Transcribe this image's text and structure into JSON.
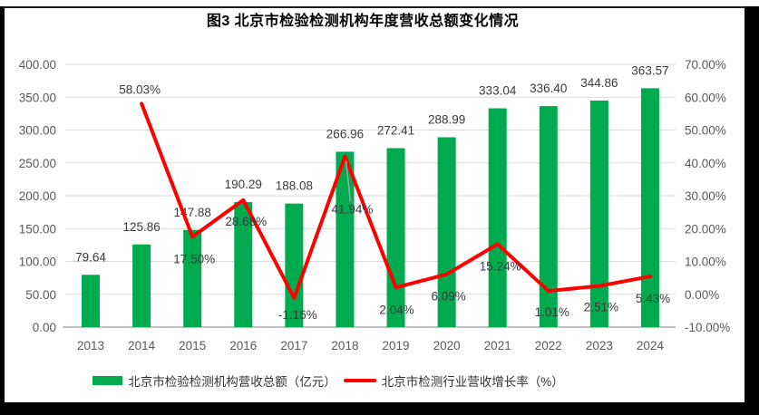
{
  "title": "图3 北京市检验检测机构年度营收总额变化情况",
  "legend": {
    "bars_label": "北京市检验检测机构营收总额（亿元）",
    "line_label": "北京市检测行业营收增长率（%）"
  },
  "colors": {
    "bar": "#00AB50",
    "line": "#FF0000",
    "gridline": "#D9D9D9",
    "axis_line": "#BFBFBF",
    "tick_text": "#595959",
    "label_text": "#3B3B3B",
    "leader_line": "#A6A6A6",
    "frame": "#000000"
  },
  "chart_data": {
    "type": "bar",
    "title": "图3 北京市检验检测机构年度营收总额变化情况",
    "categories": [
      "2013",
      "2014",
      "2015",
      "2016",
      "2017",
      "2018",
      "2019",
      "2020",
      "2021",
      "2022",
      "2023",
      "2024"
    ],
    "series": [
      {
        "name": "北京市检验检测机构营收总额（亿元）",
        "type": "bar",
        "axis": "left",
        "values": [
          79.64,
          125.86,
          147.88,
          190.29,
          188.08,
          266.96,
          272.41,
          288.99,
          333.04,
          336.4,
          344.86,
          363.57
        ],
        "labels": [
          "79.64",
          "125.86",
          "147.88",
          "190.29",
          "188.08",
          "266.96",
          "272.41",
          "288.99",
          "333.04",
          "336.40",
          "344.86",
          "363.57"
        ]
      },
      {
        "name": "北京市检测行业营收增长率（%）",
        "type": "line",
        "axis": "right",
        "values": [
          null,
          58.03,
          17.5,
          28.68,
          -1.16,
          41.94,
          2.04,
          6.09,
          15.24,
          1.01,
          2.51,
          5.43
        ],
        "labels": [
          null,
          "58.03%",
          "17.50%",
          "28.68%",
          "-1.16%",
          "41.94%",
          "2.04%",
          "6.09%",
          "15.24%",
          "1.01%",
          "2.51%",
          "5.43%"
        ]
      }
    ],
    "left_axis": {
      "min": 0,
      "max": 400,
      "step": 50,
      "ticks": [
        "0.00",
        "50.00",
        "100.00",
        "150.00",
        "200.00",
        "250.00",
        "300.00",
        "350.00",
        "400.00"
      ]
    },
    "right_axis": {
      "min": -10,
      "max": 70,
      "step": 10,
      "ticks": [
        "-10.00%",
        "0.00%",
        "10.00%",
        "20.00%",
        "30.00%",
        "40.00%",
        "50.00%",
        "60.00%",
        "70.00%"
      ]
    },
    "grid": true,
    "legend_position": "bottom"
  }
}
